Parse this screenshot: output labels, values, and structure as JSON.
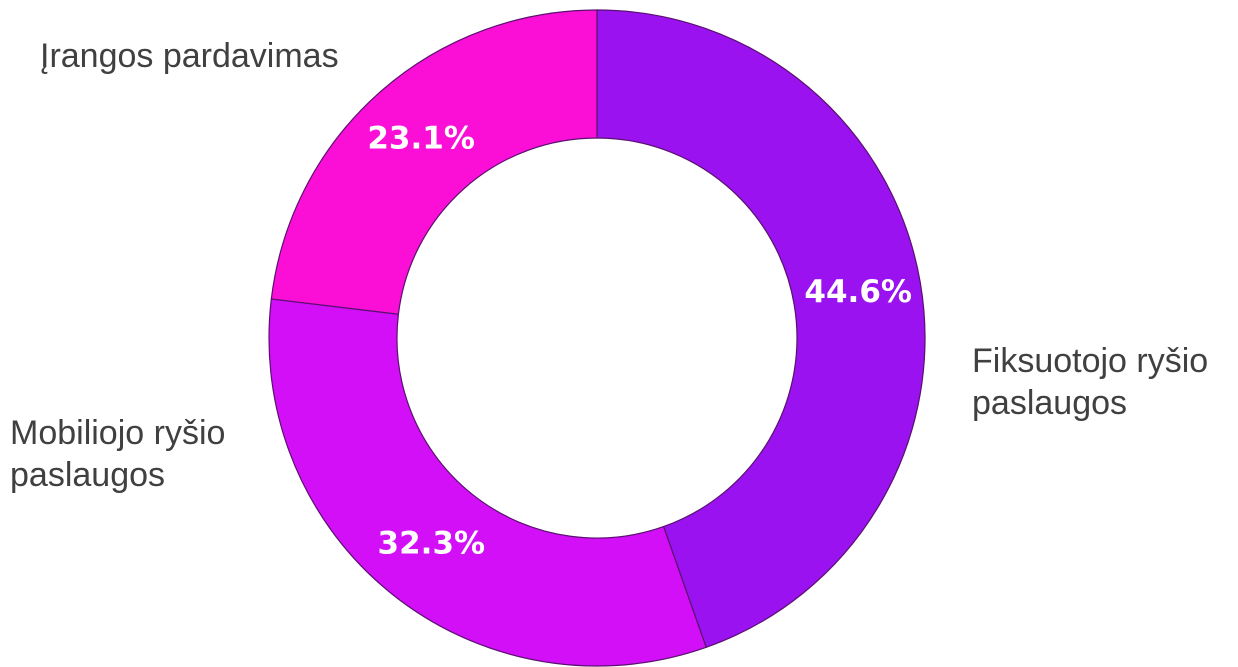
{
  "chart_data": {
    "type": "donut",
    "categories": [
      "Fiksuotojo ryšio paslaugos",
      "Mobiliojo ryšio paslaugos",
      "Įrangos pardavimas"
    ],
    "values": [
      44.6,
      32.3,
      23.1
    ],
    "value_labels": [
      "44.6%",
      "32.3%",
      "23.1%"
    ],
    "colors": [
      "#9a12ef",
      "#d20ff6",
      "#fb0fd6"
    ]
  }
}
